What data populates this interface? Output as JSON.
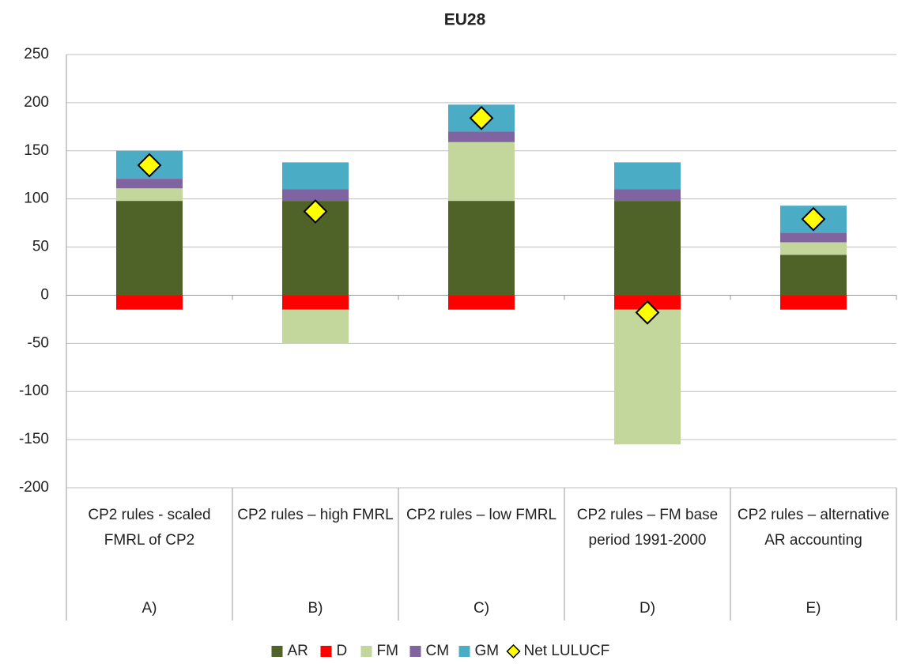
{
  "chart_data": {
    "type": "bar",
    "stacked": true,
    "title": "EU28",
    "categories": [
      "CP2 rules - scaled FMRL of CP2",
      "CP2 rules – high FMRL",
      "CP2 rules – low FMRL",
      "CP2 rules – FM base period 1991-2000",
      "CP2 rules – alternative AR accounting"
    ],
    "category_groups": [
      "A)",
      "B)",
      "C)",
      "D)",
      "E)"
    ],
    "series": [
      {
        "name": "AR",
        "color": "#4f6228",
        "values": [
          98,
          98,
          98,
          98,
          42
        ]
      },
      {
        "name": "D",
        "color": "#ff0000",
        "values": [
          -15,
          -15,
          -15,
          -15,
          -15
        ]
      },
      {
        "name": "FM",
        "color": "#c3d69b",
        "values": [
          13,
          -35,
          61,
          -140,
          13
        ]
      },
      {
        "name": "CM",
        "color": "#8064a2",
        "values": [
          10,
          12,
          11,
          12,
          10
        ]
      },
      {
        "name": "GM",
        "color": "#4bacc6",
        "values": [
          29,
          28,
          28,
          28,
          28
        ]
      },
      {
        "name": "Net LULUCF",
        "type": "scatter",
        "marker": "diamond",
        "color": "#ffff00",
        "values": [
          135,
          87,
          184,
          -18,
          79
        ]
      }
    ],
    "ylim": [
      -200,
      250
    ],
    "yticks": [
      -200,
      -150,
      -100,
      -50,
      0,
      50,
      100,
      150,
      200,
      250
    ],
    "grid": true,
    "legend": "bottom"
  }
}
